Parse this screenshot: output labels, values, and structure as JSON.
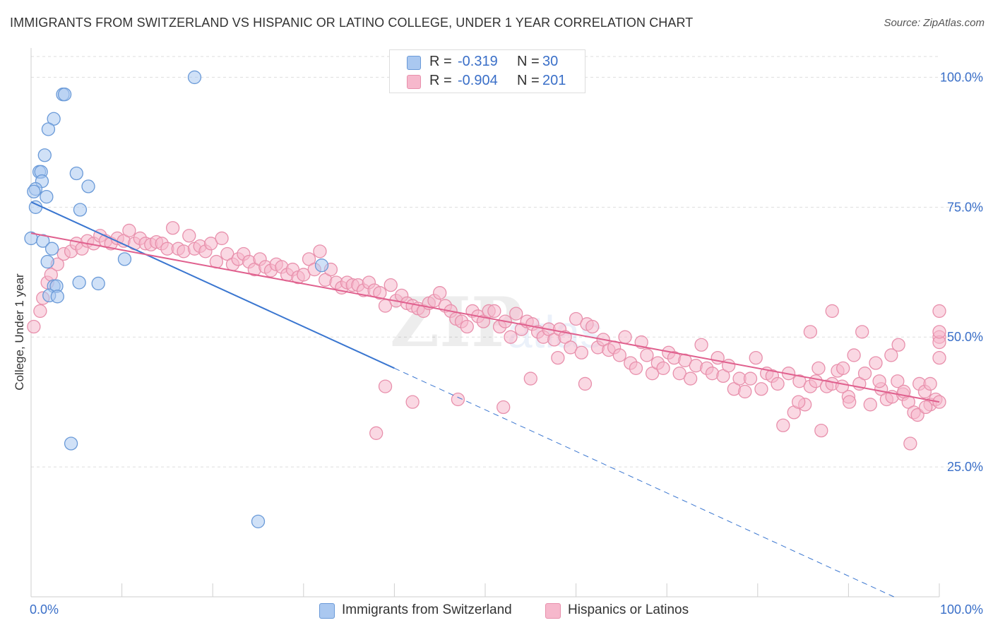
{
  "header": {
    "title": "IMMIGRANTS FROM SWITZERLAND VS HISPANIC OR LATINO COLLEGE, UNDER 1 YEAR CORRELATION CHART",
    "source": "Source: ZipAtlas.com"
  },
  "legend_top": {
    "rows": [
      {
        "r_label": "R =",
        "r_value": "-0.319",
        "n_label": "N =",
        "n_value": "30"
      },
      {
        "r_label": "R =",
        "r_value": "-0.904",
        "n_label": "N =",
        "n_value": "201"
      }
    ]
  },
  "legend_bottom": {
    "items": [
      "Immigrants from Switzerland",
      "Hispanics or Latinos"
    ]
  },
  "colors": {
    "blue_fill": "#aac8f0",
    "blue_stroke": "#6a9ad8",
    "blue_line": "#3a76d0",
    "pink_fill": "#f6b8cc",
    "pink_stroke": "#e890ac",
    "pink_line": "#e0608e",
    "tick_label": "#3a6fc8",
    "grid": "#dddddd"
  },
  "chart_data": {
    "type": "scatter",
    "title": "IMMIGRANTS FROM SWITZERLAND VS HISPANIC OR LATINO COLLEGE, UNDER 1 YEAR CORRELATION CHART",
    "xlabel": "",
    "ylabel": "College, Under 1 year",
    "xlim": [
      0,
      100
    ],
    "ylim": [
      0,
      104
    ],
    "x_tick_labels": [
      "0.0%",
      "100.0%"
    ],
    "y_ticks": [
      25,
      50,
      75,
      100
    ],
    "y_tick_labels": [
      "25.0%",
      "50.0%",
      "75.0%",
      "100.0%"
    ],
    "grid": "horizontal dashed",
    "watermark": "ZIPatlas",
    "series": [
      {
        "name": "Immigrants from Switzerland",
        "color": "blue",
        "trend": {
          "x0": 0,
          "y0": 76,
          "x1": 40,
          "y1": 44,
          "dashed_to_x": 95,
          "dashed_to_y": 0
        },
        "points": [
          [
            18,
            100
          ],
          [
            3.5,
            96.7
          ],
          [
            3.7,
            96.7
          ],
          [
            2.5,
            92
          ],
          [
            1.9,
            90
          ],
          [
            1.5,
            85
          ],
          [
            0.9,
            81.8
          ],
          [
            1.1,
            81.8
          ],
          [
            5.0,
            81.5
          ],
          [
            1.2,
            80
          ],
          [
            0.5,
            78.5
          ],
          [
            0.3,
            78
          ],
          [
            6.3,
            79
          ],
          [
            1.7,
            77
          ],
          [
            0.5,
            75
          ],
          [
            5.4,
            74.5
          ],
          [
            0,
            69
          ],
          [
            1.3,
            68.5
          ],
          [
            2.3,
            67
          ],
          [
            10.3,
            65
          ],
          [
            1.8,
            64.5
          ],
          [
            32,
            63.8
          ],
          [
            5.3,
            60.5
          ],
          [
            7.4,
            60.3
          ],
          [
            2.5,
            59.8
          ],
          [
            2.8,
            59.8
          ],
          [
            2.0,
            58
          ],
          [
            2.9,
            57.8
          ],
          [
            4.4,
            29.5
          ],
          [
            25,
            14.5
          ]
        ]
      },
      {
        "name": "Hispanics or Latinos",
        "color": "pink",
        "trend": {
          "x0": 0,
          "y0": 70,
          "x1": 100,
          "y1": 37.5
        },
        "points": [
          [
            0.3,
            52
          ],
          [
            1.0,
            55
          ],
          [
            1.3,
            57.5
          ],
          [
            1.8,
            60.5
          ],
          [
            2.2,
            62
          ],
          [
            2.9,
            64
          ],
          [
            3.6,
            66
          ],
          [
            4.4,
            66.5
          ],
          [
            5.0,
            68
          ],
          [
            5.6,
            67
          ],
          [
            6.2,
            68.5
          ],
          [
            6.9,
            68
          ],
          [
            7.6,
            69.5
          ],
          [
            8.2,
            68.5
          ],
          [
            8.8,
            68
          ],
          [
            9.5,
            69
          ],
          [
            10.2,
            68.5
          ],
          [
            10.8,
            70.5
          ],
          [
            11.4,
            68
          ],
          [
            12.0,
            69
          ],
          [
            12.6,
            68
          ],
          [
            13.2,
            67.8
          ],
          [
            13.8,
            68.3
          ],
          [
            14.4,
            68
          ],
          [
            15.0,
            67
          ],
          [
            15.6,
            71
          ],
          [
            16.2,
            67
          ],
          [
            16.8,
            66.5
          ],
          [
            17.4,
            69.5
          ],
          [
            18.0,
            67
          ],
          [
            18.6,
            67.5
          ],
          [
            19.2,
            66.5
          ],
          [
            19.8,
            68
          ],
          [
            20.4,
            64.5
          ],
          [
            21.0,
            69
          ],
          [
            21.6,
            66
          ],
          [
            22.2,
            64
          ],
          [
            22.8,
            65
          ],
          [
            23.4,
            66
          ],
          [
            24.0,
            64.5
          ],
          [
            24.6,
            63
          ],
          [
            25.2,
            65
          ],
          [
            25.8,
            63.5
          ],
          [
            26.4,
            62.8
          ],
          [
            27.0,
            64
          ],
          [
            27.6,
            63.5
          ],
          [
            28.2,
            62
          ],
          [
            28.8,
            63
          ],
          [
            29.4,
            61.5
          ],
          [
            30.0,
            62
          ],
          [
            30.6,
            65
          ],
          [
            31.2,
            63
          ],
          [
            31.8,
            66.5
          ],
          [
            32.4,
            61
          ],
          [
            33.0,
            63
          ],
          [
            33.6,
            60.5
          ],
          [
            34.2,
            59.5
          ],
          [
            34.8,
            60.5
          ],
          [
            35.4,
            60
          ],
          [
            36.0,
            60
          ],
          [
            36.6,
            59
          ],
          [
            37.2,
            60.5
          ],
          [
            37.8,
            59
          ],
          [
            38.4,
            58.5
          ],
          [
            39.0,
            56
          ],
          [
            39.6,
            60
          ],
          [
            40.2,
            57
          ],
          [
            40.8,
            58
          ],
          [
            41.4,
            56.5
          ],
          [
            42.0,
            56
          ],
          [
            42.6,
            55.5
          ],
          [
            43.2,
            55
          ],
          [
            43.8,
            56.5
          ],
          [
            44.4,
            57
          ],
          [
            45.0,
            58.5
          ],
          [
            45.6,
            56
          ],
          [
            46.2,
            55
          ],
          [
            46.8,
            53.5
          ],
          [
            47.4,
            53
          ],
          [
            48.0,
            52
          ],
          [
            48.6,
            55
          ],
          [
            49.2,
            54
          ],
          [
            49.8,
            53
          ],
          [
            50.4,
            55
          ],
          [
            51.0,
            55
          ],
          [
            51.6,
            52
          ],
          [
            52.2,
            53
          ],
          [
            52.8,
            50
          ],
          [
            53.4,
            54.5
          ],
          [
            54.0,
            51.5
          ],
          [
            54.6,
            53
          ],
          [
            55.2,
            52.5
          ],
          [
            55.8,
            51
          ],
          [
            56.4,
            50
          ],
          [
            57.0,
            51.5
          ],
          [
            57.6,
            49.5
          ],
          [
            58.2,
            51.5
          ],
          [
            58.8,
            50
          ],
          [
            59.4,
            48
          ],
          [
            60.0,
            53.5
          ],
          [
            60.6,
            47
          ],
          [
            61.2,
            52.5
          ],
          [
            61.8,
            52
          ],
          [
            62.4,
            48
          ],
          [
            63.0,
            49.5
          ],
          [
            63.6,
            47.5
          ],
          [
            64.2,
            48
          ],
          [
            64.8,
            46.5
          ],
          [
            65.4,
            50
          ],
          [
            66.0,
            45
          ],
          [
            66.6,
            44
          ],
          [
            67.2,
            49
          ],
          [
            67.8,
            46.5
          ],
          [
            68.4,
            43
          ],
          [
            69.0,
            45
          ],
          [
            69.6,
            44
          ],
          [
            70.2,
            47
          ],
          [
            70.8,
            46
          ],
          [
            71.4,
            43
          ],
          [
            72.0,
            45.5
          ],
          [
            72.6,
            42
          ],
          [
            73.2,
            44.5
          ],
          [
            73.8,
            48.5
          ],
          [
            74.4,
            44
          ],
          [
            75.0,
            43
          ],
          [
            75.6,
            46
          ],
          [
            76.2,
            42.5
          ],
          [
            76.8,
            44.5
          ],
          [
            77.4,
            40
          ],
          [
            78.0,
            42
          ],
          [
            78.6,
            39.5
          ],
          [
            79.2,
            42
          ],
          [
            79.8,
            46
          ],
          [
            80.4,
            40
          ],
          [
            81.0,
            43
          ],
          [
            81.6,
            42.5
          ],
          [
            82.2,
            41
          ],
          [
            82.8,
            33
          ],
          [
            83.4,
            43
          ],
          [
            84.0,
            35.5
          ],
          [
            84.6,
            41.5
          ],
          [
            85.2,
            37
          ],
          [
            85.8,
            40.5
          ],
          [
            86.4,
            41.5
          ],
          [
            87.0,
            32
          ],
          [
            87.6,
            40.5
          ],
          [
            88.2,
            41
          ],
          [
            88.8,
            43.5
          ],
          [
            89.4,
            44
          ],
          [
            90.0,
            38.5
          ],
          [
            90.6,
            46.5
          ],
          [
            91.2,
            41
          ],
          [
            91.8,
            43
          ],
          [
            92.4,
            37
          ],
          [
            93.0,
            45
          ],
          [
            93.6,
            40
          ],
          [
            94.2,
            38
          ],
          [
            94.8,
            38.5
          ],
          [
            95.4,
            41.5
          ],
          [
            96.0,
            39
          ],
          [
            96.6,
            37.5
          ],
          [
            97.2,
            35.5
          ],
          [
            97.8,
            41
          ],
          [
            98.4,
            39.5
          ],
          [
            99.0,
            37
          ],
          [
            99.6,
            38
          ],
          [
            100.0,
            37.5
          ],
          [
            84.5,
            37.5
          ],
          [
            85.8,
            51
          ],
          [
            86.7,
            44
          ],
          [
            88.2,
            55
          ],
          [
            89.3,
            40.5
          ],
          [
            90.1,
            37.5
          ],
          [
            91.5,
            51
          ],
          [
            93.4,
            41.5
          ],
          [
            94.7,
            46.5
          ],
          [
            95.5,
            48.5
          ],
          [
            96.1,
            39.5
          ],
          [
            96.8,
            29.5
          ],
          [
            97.6,
            35
          ],
          [
            98.5,
            36.5
          ],
          [
            99.0,
            41
          ],
          [
            100.0,
            50
          ],
          [
            100.0,
            49
          ],
          [
            100.0,
            55
          ],
          [
            100.0,
            51
          ],
          [
            100.0,
            46
          ],
          [
            38.0,
            31.5
          ],
          [
            39.0,
            40.5
          ],
          [
            42.0,
            37.5
          ],
          [
            47.0,
            38
          ],
          [
            52.0,
            36.5
          ],
          [
            55.0,
            42
          ],
          [
            58.0,
            46
          ],
          [
            61.0,
            41
          ]
        ]
      }
    ]
  }
}
